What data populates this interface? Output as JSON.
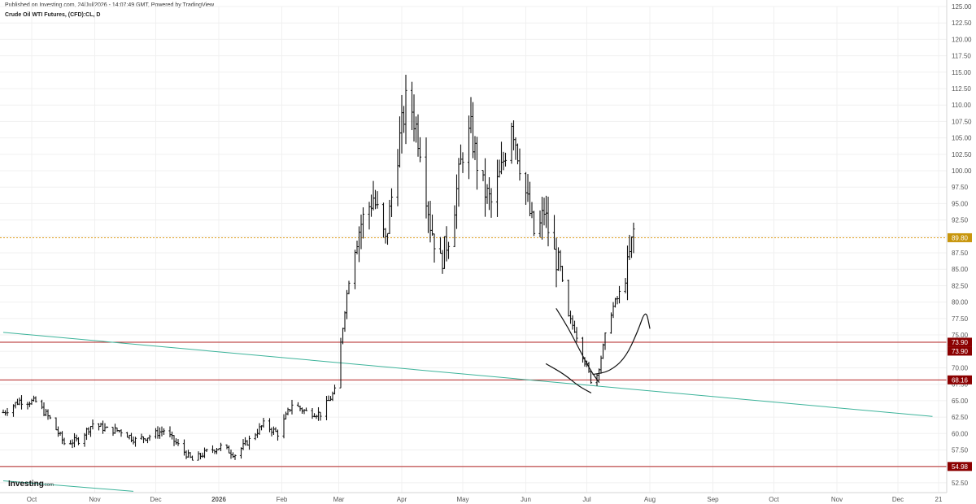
{
  "header": {
    "published": "Published on Investing.com, 24/Jul/2026 - 14:07:49 GMT, Powered by TradingView",
    "symbol": "Crude Oil WTI Futures, (CFD):CL, D"
  },
  "logo": {
    "brand": "Investing",
    "suffix": ".com"
  },
  "colors": {
    "bars": "#111111",
    "horizontal_line": "#b22222",
    "trendline": "#3cb39a",
    "dotted_line": "#e0a020",
    "tag_red": "#8b0000",
    "tag_gold": "#c8960c",
    "grid": "#f0f0f0"
  },
  "chart_data": {
    "type": "ohlc",
    "ylim": [
      51,
      125
    ],
    "y_ticks": [
      "52.50",
      "55.00",
      "57.50",
      "60.00",
      "62.50",
      "65.00",
      "67.50",
      "70.00",
      "72.50",
      "75.00",
      "77.50",
      "80.00",
      "82.50",
      "85.00",
      "87.50",
      "90.00",
      "92.50",
      "95.00",
      "97.50",
      "100.00",
      "102.50",
      "105.00",
      "107.50",
      "110.00",
      "112.50",
      "115.00",
      "117.50",
      "120.00",
      "122.50",
      "125.00"
    ],
    "x_ticks": [
      {
        "label": "Oct",
        "date": "2025-10-01"
      },
      {
        "label": "Nov",
        "date": "2025-11-01"
      },
      {
        "label": "Dec",
        "date": "2025-12-01"
      },
      {
        "label": "2026",
        "date": "2026-01-01",
        "bold": true
      },
      {
        "label": "Feb",
        "date": "2026-02-01"
      },
      {
        "label": "Mar",
        "date": "2026-03-01"
      },
      {
        "label": "Apr",
        "date": "2026-04-01"
      },
      {
        "label": "May",
        "date": "2026-05-01"
      },
      {
        "label": "Jun",
        "date": "2026-06-01"
      },
      {
        "label": "Jul",
        "date": "2026-07-01"
      },
      {
        "label": "Aug",
        "date": "2026-08-01"
      },
      {
        "label": "Sep",
        "date": "2026-09-01"
      },
      {
        "label": "Oct",
        "date": "2026-10-01"
      },
      {
        "label": "Nov",
        "date": "2026-11-01"
      },
      {
        "label": "Dec",
        "date": "2026-12-01"
      },
      {
        "label": "21",
        "date": "2026-12-21"
      }
    ],
    "x_range": [
      "2025-09-17",
      "2026-12-21"
    ],
    "price_path": [
      [
        "2025-09-17",
        63.2
      ],
      [
        "2025-09-25",
        65.0
      ],
      [
        "2025-10-03",
        64.8
      ],
      [
        "2025-10-10",
        62.2
      ],
      [
        "2025-10-17",
        58.5
      ],
      [
        "2025-10-24",
        59.0
      ],
      [
        "2025-10-31",
        61.5
      ],
      [
        "2025-11-07",
        60.6
      ],
      [
        "2025-11-14",
        60.4
      ],
      [
        "2025-11-21",
        59.0
      ],
      [
        "2025-11-28",
        59.6
      ],
      [
        "2025-12-05",
        60.5
      ],
      [
        "2025-12-12",
        58.2
      ],
      [
        "2025-12-19",
        55.9
      ],
      [
        "2025-12-26",
        57.2
      ],
      [
        "2026-01-02",
        58.0
      ],
      [
        "2026-01-09",
        56.8
      ],
      [
        "2026-01-16",
        59.0
      ],
      [
        "2026-01-23",
        61.4
      ],
      [
        "2026-01-30",
        60.0
      ],
      [
        "2026-02-06",
        64.5
      ],
      [
        "2026-02-13",
        63.3
      ],
      [
        "2026-02-20",
        63.0
      ],
      [
        "2026-02-27",
        66.4
      ],
      [
        "2026-03-01",
        71.0
      ],
      [
        "2026-03-04",
        79.0
      ],
      [
        "2026-03-08",
        88.0
      ],
      [
        "2026-03-12",
        92.0
      ],
      [
        "2026-03-18",
        96.0
      ],
      [
        "2026-03-24",
        89.0
      ],
      [
        "2026-03-30",
        103.0
      ],
      [
        "2026-04-04",
        112.0
      ],
      [
        "2026-04-10",
        104.0
      ],
      [
        "2026-04-15",
        92.0
      ],
      [
        "2026-04-20",
        86.0
      ],
      [
        "2026-04-25",
        91.0
      ],
      [
        "2026-05-01",
        103.0
      ],
      [
        "2026-05-05",
        106.0
      ],
      [
        "2026-05-10",
        98.0
      ],
      [
        "2026-05-15",
        95.0
      ],
      [
        "2026-05-20",
        100.0
      ],
      [
        "2026-05-25",
        108.0
      ],
      [
        "2026-05-28",
        103.0
      ],
      [
        "2026-06-02",
        95.0
      ],
      [
        "2026-06-06",
        89.0
      ],
      [
        "2026-06-10",
        94.0
      ],
      [
        "2026-06-14",
        88.0
      ],
      [
        "2026-06-18",
        85.0
      ],
      [
        "2026-06-21",
        78.0
      ],
      [
        "2026-06-25",
        76.0
      ],
      [
        "2026-06-29",
        72.0
      ],
      [
        "2026-07-03",
        68.2
      ],
      [
        "2026-07-06",
        69.0
      ],
      [
        "2026-07-09",
        73.0
      ],
      [
        "2026-07-12",
        78.0
      ],
      [
        "2026-07-16",
        80.5
      ],
      [
        "2026-07-20",
        83.5
      ],
      [
        "2026-07-22",
        87.0
      ],
      [
        "2026-07-24",
        90.8
      ]
    ],
    "horizontal_levels": [
      {
        "value": 73.9,
        "label": "73.90",
        "style": "solid"
      },
      {
        "value": 68.16,
        "label": "68.16",
        "style": "solid"
      },
      {
        "value": 54.98,
        "label": "54.98",
        "style": "solid"
      },
      {
        "value": 89.8,
        "label": "89.80",
        "style": "dotted"
      }
    ],
    "trendlines": [
      {
        "from": [
          "2025-09-17",
          75.4
        ],
        "to": [
          "2026-12-18",
          62.6
        ]
      },
      {
        "from": [
          "2025-09-17",
          52.8
        ],
        "to": [
          "2025-11-20",
          51.2
        ]
      }
    ],
    "drawings": [
      {
        "name": "downtrend-curve",
        "points": [
          [
            "2026-06-16",
            79.0
          ],
          [
            "2026-06-22",
            76.0
          ],
          [
            "2026-06-27",
            73.0
          ],
          [
            "2026-07-03",
            69.5
          ],
          [
            "2026-07-07",
            67.8
          ]
        ]
      },
      {
        "name": "support-arc",
        "points": [
          [
            "2026-06-11",
            70.6
          ],
          [
            "2026-06-20",
            69.0
          ],
          [
            "2026-06-27",
            67.2
          ],
          [
            "2026-07-03",
            66.2
          ]
        ]
      },
      {
        "name": "recovery-arrow",
        "points": [
          [
            "2026-07-04",
            69.0
          ],
          [
            "2026-07-12",
            69.4
          ],
          [
            "2026-07-20",
            71.5
          ],
          [
            "2026-07-26",
            75.5
          ],
          [
            "2026-07-30",
            79.0
          ],
          [
            "2026-08-01",
            76.0
          ]
        ]
      }
    ]
  }
}
